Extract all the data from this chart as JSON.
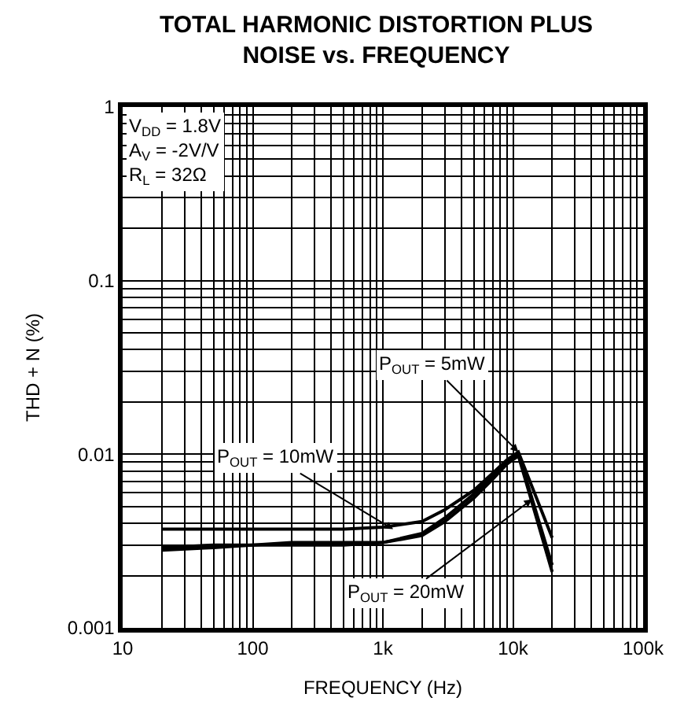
{
  "chart_data": {
    "type": "line",
    "title": "TOTAL HARMONIC DISTORTION PLUS\nNOISE vs. FREQUENCY",
    "xlabel": "FREQUENCY (Hz)",
    "ylabel": "THD + N (%)",
    "log": "xy",
    "grid": true,
    "x": [
      20,
      50,
      100,
      200,
      500,
      1000,
      2000,
      3000,
      5000,
      7000,
      9000,
      11000,
      20000
    ],
    "series": [
      {
        "color": "#000000",
        "values": [
          0.0037,
          0.0037,
          0.0037,
          0.0037,
          0.0037,
          0.0038,
          0.0041,
          0.0048,
          0.0062,
          0.0078,
          0.0093,
          0.0103,
          0.0033
        ]
      },
      {
        "color": "#000000",
        "values": [
          0.0029,
          0.003,
          0.003,
          0.0031,
          0.0031,
          0.0031,
          0.0034,
          0.0041,
          0.0056,
          0.0072,
          0.0088,
          0.0098,
          0.0021
        ]
      },
      {
        "color": "#000000",
        "values": [
          0.0028,
          0.0029,
          0.003,
          0.003,
          0.003,
          0.0031,
          0.0035,
          0.0043,
          0.0059,
          0.0075,
          0.0091,
          0.0101,
          0.0023
        ]
      }
    ],
    "xlim": [
      10,
      100000
    ],
    "xticks": [
      10,
      100,
      {
        "value": 1000,
        "label": "1k"
      },
      {
        "value": 10000,
        "label": "10k"
      },
      {
        "value": 100000,
        "label": "100k"
      }
    ],
    "ylim": [
      0.001,
      1
    ],
    "yticks": [
      0.001,
      0.01,
      0.1,
      1
    ],
    "annotations": [
      "V$_{DD}$ = 1.8V\nA$_{V}$ = -2V/V\nR$_{L}$ = 32Ω",
      {
        "text": "P$_{OUT}$ = 5mW",
        "x": 11000,
        "y": 0.0103
      },
      {
        "text": "P$_{OUT}$ = 10mW",
        "x": 1200,
        "y": 0.0037
      },
      {
        "text": "P$_{OUT}$ = 20mW",
        "x": 14000,
        "y": 0.0055
      }
    ]
  }
}
